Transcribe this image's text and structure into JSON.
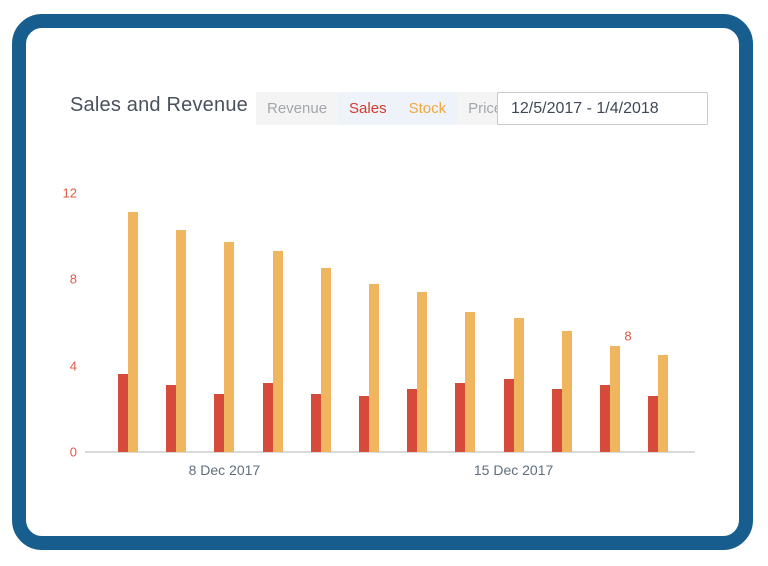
{
  "header": {
    "title": "Sales and Revenue",
    "date_range": "12/5/2017 - 1/4/2018"
  },
  "tabs": [
    {
      "label": "Revenue",
      "text_color": "#a3a7ab",
      "bg": "#f4f4f4"
    },
    {
      "label": "Sales",
      "text_color": "#d23b2e",
      "bg": "#eef2f9"
    },
    {
      "label": "Stock",
      "text_color": "#f2a73d",
      "bg": "#eef2f9"
    },
    {
      "label": "Price",
      "text_color": "#a3a7ab",
      "bg": "#f4f4f4"
    }
  ],
  "colors": {
    "frame_blue": "#175e8e",
    "sales_red": "#d64a3b",
    "stock_orange": "#f0b55f",
    "y_axis_label": "#e05a47",
    "x_axis_label": "#5f6e7e",
    "axis_line": "#d9d9d9",
    "title_text": "#49515e"
  },
  "chart_data": {
    "type": "bar",
    "title": "Sales and Revenue",
    "series": [
      {
        "name": "Sales",
        "color": "#d64a3b",
        "values": [
          3.6,
          3.1,
          2.7,
          3.2,
          2.7,
          2.6,
          2.9,
          3.2,
          3.4,
          2.9,
          3.1,
          2.6
        ]
      },
      {
        "name": "Stock",
        "color": "#f0b55f",
        "values": [
          11.1,
          10.3,
          9.7,
          9.3,
          8.5,
          7.8,
          7.4,
          6.5,
          6.2,
          5.6,
          4.9,
          4.5
        ]
      }
    ],
    "num_groups": 12,
    "y_ticks": [
      0,
      4,
      8,
      12
    ],
    "ylim": [
      0,
      12
    ],
    "x_tick_labels": [
      {
        "label": "8 Dec 2017",
        "group_index": 3
      },
      {
        "label": "15 Dec 2017",
        "group_index": 9
      }
    ],
    "annotations": [
      {
        "text": "8",
        "series": "Stock",
        "group_index": 11
      }
    ],
    "grid": false,
    "legend": false
  }
}
